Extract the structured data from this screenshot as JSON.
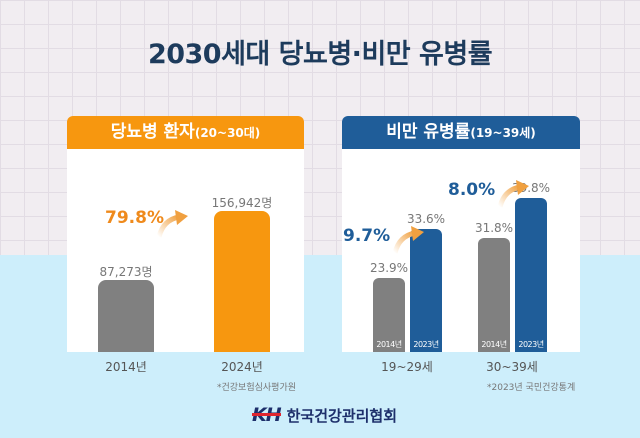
{
  "title": "2030세대 당뇨병·비만 유병률",
  "chart_data": [
    {
      "type": "bar",
      "title": "당뇨병 환자",
      "title_suffix": "(20~30대)",
      "categories": [
        "2014년",
        "2024년"
      ],
      "values": [
        87273,
        156942
      ],
      "value_labels": [
        "87,273명",
        "156,942명"
      ],
      "colors": [
        "#808080",
        "#f7970f"
      ],
      "change_label": "79.8%",
      "ylim": [
        15000,
        160000
      ],
      "source": "*건강보험심사평가원",
      "header_color": "#f7970f"
    },
    {
      "type": "bar",
      "title": "비만 유병률",
      "title_suffix": "(19~39세)",
      "categories": [
        "19~29세",
        "30~39세"
      ],
      "series": [
        {
          "name": "2014년",
          "values": [
            23.9,
            31.8
          ],
          "color": "#808080"
        },
        {
          "name": "2023년",
          "values": [
            33.6,
            39.8
          ],
          "color": "#1f5d99"
        }
      ],
      "value_labels": [
        [
          "23.9%",
          "31.8%"
        ],
        [
          "33.6%",
          "39.8%"
        ]
      ],
      "change_labels": [
        "9.7%",
        "8.0%"
      ],
      "ylim": [
        9.2,
        41
      ],
      "source": "*2023년 국민건강통계",
      "header_color": "#1f5d99"
    }
  ],
  "logo": {
    "mark": "KH",
    "org_name": "한국건강관리협회"
  }
}
